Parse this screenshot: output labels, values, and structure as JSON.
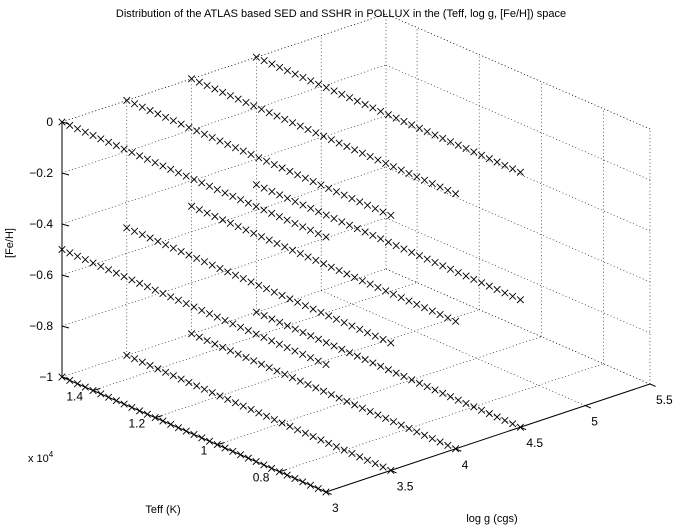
{
  "chart_data": {
    "type": "scatter",
    "title": "Distribution of the ATLAS based SED and SSHR in POLLUX in the (Teff, log g, [Fe/H]) space",
    "xlabel": "log g (cgs)",
    "ylabel": "Teff (K)",
    "zlabel": "[Fe/H]",
    "y_multiplier": "x 10",
    "y_multiplier_exponent": "4",
    "xlim": [
      3,
      5.5
    ],
    "ylim": [
      6500,
      15000
    ],
    "zlim": [
      -1,
      0
    ],
    "xticks": [
      "3",
      "3.5",
      "4",
      "4.5",
      "5",
      "5.5"
    ],
    "yticks": [
      "0.8",
      "1",
      "1.2",
      "1.4"
    ],
    "zticks": [
      "−1",
      "−0.8",
      "−0.6",
      "−0.4",
      "−0.2",
      "0"
    ],
    "grid": true,
    "marker": "x",
    "teff_range": [
      6500,
      15000
    ],
    "teff_step": 250,
    "series": [
      {
        "logg": 3.0,
        "feh": -1.0
      },
      {
        "logg": 3.0,
        "feh": -0.5
      },
      {
        "logg": 3.0,
        "feh": 0.0
      },
      {
        "logg": 3.5,
        "feh": -1.0
      },
      {
        "logg": 3.5,
        "feh": -0.5
      },
      {
        "logg": 3.5,
        "feh": 0.0
      },
      {
        "logg": 4.0,
        "feh": -1.0
      },
      {
        "logg": 4.0,
        "feh": -0.5
      },
      {
        "logg": 4.0,
        "feh": 0.0
      },
      {
        "logg": 4.5,
        "feh": -1.0
      },
      {
        "logg": 4.5,
        "feh": -0.5
      },
      {
        "logg": 4.5,
        "feh": 0.0
      }
    ]
  }
}
